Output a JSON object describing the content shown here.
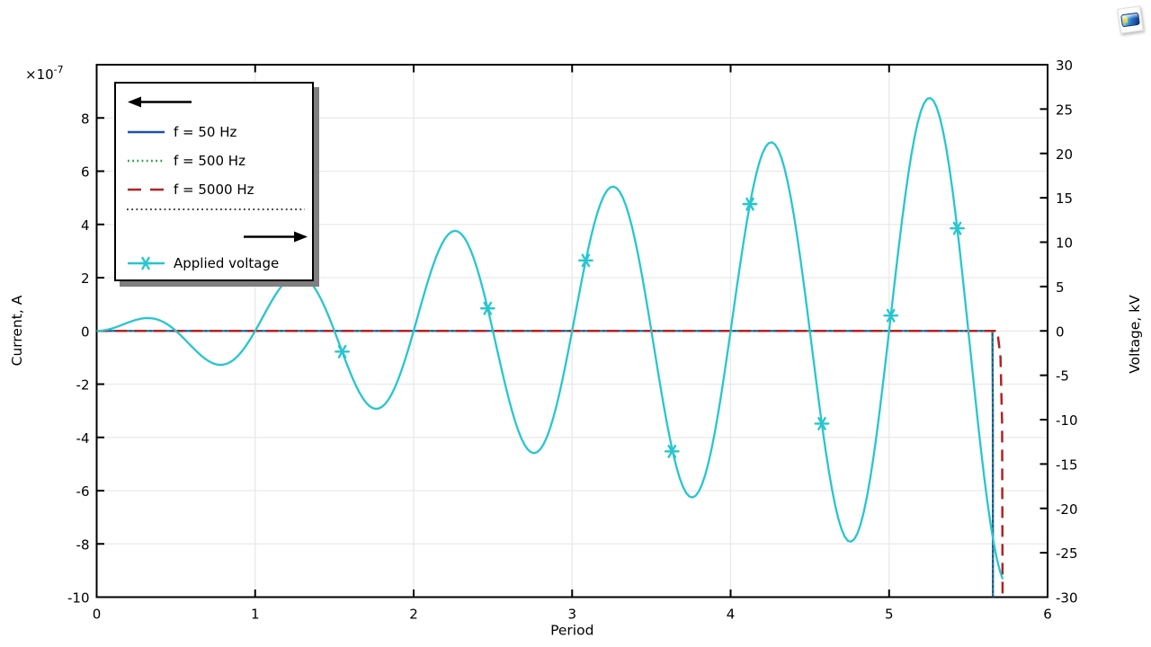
{
  "window": {
    "background": "#ffffff",
    "corner_button": "plot-thumbnail-icon"
  },
  "chart_data": {
    "type": "line",
    "title": "",
    "xlabel": "Period",
    "xlim": [
      0,
      6
    ],
    "x_ticks": [
      0,
      1,
      2,
      3,
      4,
      5,
      6
    ],
    "grid": true,
    "grid_color": "#e9e9e9",
    "left_axis": {
      "label": "Current, A",
      "multiplier": {
        "base": "×10",
        "exp": "-7",
        "display": "×10⁻⁷"
      },
      "lim": [
        -10,
        10
      ],
      "ticks": [
        8,
        6,
        4,
        2,
        0,
        -2,
        -4,
        -6,
        -8,
        -10
      ]
    },
    "right_axis": {
      "label": "Voltage, kV",
      "lim": [
        -30,
        30
      ],
      "ticks": [
        30,
        25,
        20,
        15,
        10,
        5,
        0,
        -5,
        -10,
        -15,
        -20,
        -25,
        -30
      ]
    },
    "series": [
      {
        "name": "f = 50 Hz",
        "axis": "left",
        "color": "#1e4fae",
        "style": "solid",
        "points": [
          [
            0,
            0
          ],
          [
            5.652,
            0
          ],
          [
            5.6545,
            -3
          ],
          [
            5.655,
            -10
          ]
        ]
      },
      {
        "name": "f = 500 Hz",
        "axis": "left",
        "color": "#2f9e4c",
        "style": "dotted",
        "points": [
          [
            0,
            0
          ],
          [
            5.652,
            0
          ],
          [
            5.6545,
            -3
          ],
          [
            5.655,
            -10
          ]
        ]
      },
      {
        "name": "f = 5000 Hz",
        "axis": "left",
        "color": "#b32222",
        "style": "dashed",
        "points": [
          [
            0,
            0
          ],
          [
            5.683,
            0
          ],
          [
            5.703,
            -1
          ],
          [
            5.713,
            -3.5
          ],
          [
            5.716,
            -10
          ]
        ]
      },
      {
        "name": "Applied voltage",
        "axis": "right",
        "color": "#27c6cf",
        "style": "solid",
        "marker": "asterisk",
        "generator": {
          "description": "ramped sinusoid V(t) = slope*t*sin(2*pi*t), kV",
          "amp_slope": 5,
          "t_start": 0,
          "t_end": 5.717,
          "t_step": 0.02
        },
        "marker_points": [
          [
            1.549,
            -2.34
          ],
          [
            2.467,
            2.54
          ],
          [
            3.086,
            7.94
          ],
          [
            3.63,
            -13.58
          ],
          [
            4.122,
            14.29
          ],
          [
            4.576,
            -10.45
          ],
          [
            5.011,
            1.73
          ],
          [
            5.43,
            11.56
          ]
        ]
      }
    ],
    "legend": {
      "position": "top-left",
      "left_axis_arrow": "arrow-left",
      "right_axis_arrow": "arrow-right",
      "separator": "dotted"
    }
  }
}
